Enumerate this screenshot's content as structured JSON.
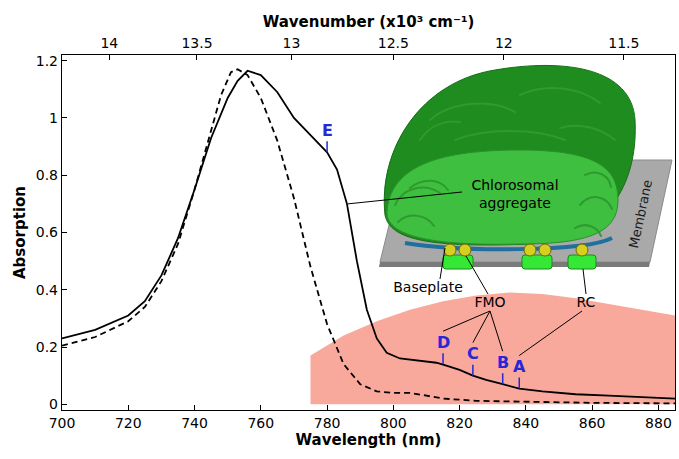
{
  "chart_data": {
    "type": "line",
    "xlabel": "Wavelength (nm)",
    "ylabel": "Absorption",
    "x2label": "Wavenumber (x10³ cm⁻¹)",
    "xlim": [
      700,
      885
    ],
    "xticks": [
      700,
      720,
      740,
      760,
      780,
      800,
      820,
      840,
      860,
      880
    ],
    "ylim": [
      -0.02,
      1.22
    ],
    "yticks": [
      0,
      0.2,
      0.4,
      0.6,
      0.8,
      1,
      1.2
    ],
    "x2lim": [
      14.2857,
      11.2994
    ],
    "x2ticks": [
      14,
      13.5,
      13,
      12.5,
      12,
      11.5
    ],
    "grid": false,
    "series": [
      {
        "type": "area",
        "color": "#f8a99b",
        "x": [
          775,
          785,
          795,
          805,
          815,
          825,
          835,
          845,
          855,
          865,
          875,
          885
        ],
        "values": [
          0.17,
          0.24,
          0.29,
          0.33,
          0.36,
          0.38,
          0.39,
          0.385,
          0.37,
          0.35,
          0.33,
          0.31
        ]
      },
      {
        "type": "line",
        "color": "#000000",
        "line_style": "dashed",
        "x": [
          700,
          710,
          720,
          725,
          730,
          735,
          740,
          745,
          748,
          751,
          753,
          756,
          760,
          765,
          770,
          775,
          780,
          785,
          790,
          795,
          800,
          805,
          810,
          815,
          825,
          840,
          860,
          885
        ],
        "values": [
          0.205,
          0.235,
          0.29,
          0.34,
          0.43,
          0.56,
          0.75,
          0.96,
          1.08,
          1.16,
          1.17,
          1.15,
          1.07,
          0.92,
          0.72,
          0.48,
          0.28,
          0.14,
          0.07,
          0.045,
          0.04,
          0.04,
          0.03,
          0.02,
          0.012,
          0.008,
          0.005,
          0.003
        ]
      },
      {
        "type": "line",
        "color": "#000000",
        "line_style": "solid",
        "x": [
          700,
          710,
          720,
          725,
          730,
          735,
          740,
          745,
          750,
          753,
          756,
          760,
          765,
          770,
          775,
          780,
          783,
          786,
          789,
          792,
          795,
          798,
          802,
          806,
          810,
          813,
          816,
          820,
          824,
          828,
          833,
          838,
          845,
          855,
          865,
          875,
          885
        ],
        "values": [
          0.23,
          0.26,
          0.31,
          0.36,
          0.45,
          0.58,
          0.75,
          0.93,
          1.07,
          1.13,
          1.165,
          1.15,
          1.09,
          1.0,
          0.94,
          0.88,
          0.82,
          0.7,
          0.5,
          0.33,
          0.23,
          0.18,
          0.16,
          0.155,
          0.15,
          0.145,
          0.135,
          0.12,
          0.1,
          0.085,
          0.07,
          0.055,
          0.045,
          0.035,
          0.03,
          0.025,
          0.02
        ]
      }
    ],
    "annotations": [
      {
        "text": "A",
        "x": 838,
        "y": 0.055
      },
      {
        "text": "B",
        "x": 833,
        "y": 0.07
      },
      {
        "text": "C",
        "x": 824,
        "y": 0.1
      },
      {
        "text": "D",
        "x": 815,
        "y": 0.14
      },
      {
        "text": "E",
        "x": 780,
        "y": 0.88
      }
    ],
    "inset": {
      "labels": {
        "chlorosome": "Chlorosomal aggregate",
        "membrane": "Membrane",
        "baseplate": "Baseplate",
        "fmo": "FMO",
        "rc": "RC"
      },
      "links": {
        "fmo": [
          "D",
          "C",
          "B"
        ],
        "rc": [
          "A"
        ]
      }
    }
  }
}
